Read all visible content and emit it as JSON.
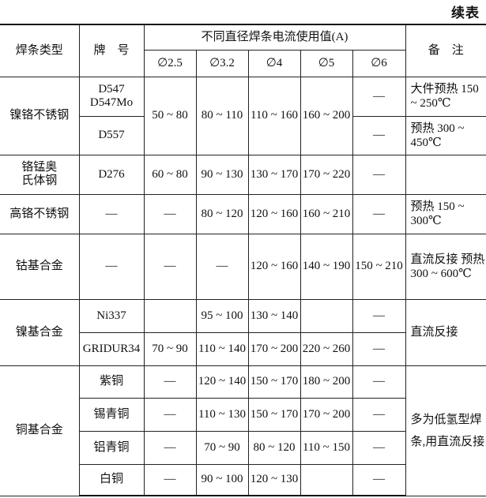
{
  "caption": "续表",
  "header": {
    "type": "焊条类型",
    "brand": "牌　号",
    "current_group": "不同直径焊条电流使用值(A)",
    "diameters": [
      "∅2.5",
      "∅3.2",
      "∅4",
      "∅5",
      "∅6"
    ],
    "notes": "备　注"
  },
  "groups": [
    {
      "type": "镍铬不锈钢",
      "brands": [
        "D547\nD547Mo",
        "D557"
      ],
      "d25": "50 ~ 80",
      "d32": "80 ~ 110",
      "d4": "110 ~ 160",
      "d5": "160 ~ 200",
      "d6": [
        "—",
        "—"
      ],
      "notes": [
        "大件预热 150 ~ 250℃",
        "预热 300 ~ 450℃"
      ]
    },
    {
      "type": "铬锰奥氏体钢",
      "brand": "D276",
      "values": [
        "60 ~ 80",
        "90 ~ 130",
        "130 ~ 170",
        "170 ~ 220",
        "—"
      ],
      "notes": ""
    },
    {
      "type": "高铬不锈钢",
      "brand": "—",
      "values": [
        "—",
        "80 ~ 120",
        "120 ~ 160",
        "160 ~ 210",
        "—"
      ],
      "notes": "预热 150 ~ 300℃"
    },
    {
      "type": "钴基合金",
      "brand": "—",
      "values": [
        "—",
        "—",
        "120 ~ 160",
        "140 ~ 190",
        "150 ~ 210"
      ],
      "notes": "直流反接 预热 300 ~ 600℃"
    },
    {
      "type": "镍基合金",
      "rows": [
        {
          "brand": "Ni337",
          "values": [
            "",
            "95 ~ 100",
            "130 ~ 140",
            "",
            "—"
          ]
        },
        {
          "brand": "GRIDUR34",
          "values": [
            "70 ~ 90",
            "110 ~ 140",
            "170 ~ 200",
            "220 ~ 260",
            "—"
          ]
        }
      ],
      "notes": "直流反接"
    },
    {
      "type": "铜基合金",
      "rows": [
        {
          "brand": "紫铜",
          "values": [
            "—",
            "120 ~ 140",
            "150 ~ 170",
            "180 ~ 200",
            "—"
          ]
        },
        {
          "brand": "锡青铜",
          "values": [
            "—",
            "110 ~ 130",
            "150 ~ 170",
            "170 ~ 200",
            "—"
          ]
        },
        {
          "brand": "铝青铜",
          "values": [
            "—",
            "70 ~ 90",
            "80 ~ 120",
            "110 ~ 150",
            "—"
          ]
        },
        {
          "brand": "白铜",
          "values": [
            "—",
            "90 ~ 100",
            "120 ~ 130",
            "",
            "—"
          ]
        }
      ],
      "notes": "多为低氢型焊条,用直流反接"
    }
  ]
}
